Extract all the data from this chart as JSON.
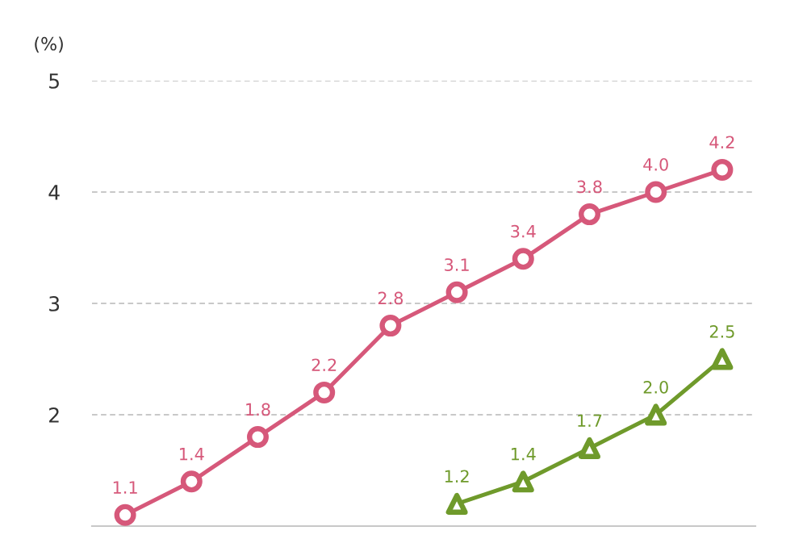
{
  "chart_data": {
    "type": "line",
    "ylabel": "(%)",
    "categories": [
      null,
      null,
      null,
      null,
      null,
      null,
      null,
      null,
      null,
      null
    ],
    "series": [
      {
        "color": "#d6587a",
        "marker": "circle",
        "values": [
          1.1,
          1.4,
          1.8,
          2.2,
          2.8,
          3.1,
          3.4,
          3.8,
          4.0,
          4.2
        ],
        "value_labels": [
          "1.1",
          "1.4",
          "1.8",
          "2.2",
          "2.8",
          "3.1",
          "3.4",
          "3.8",
          "4.0",
          "4.2"
        ]
      },
      {
        "color": "#6f9a2b",
        "marker": "triangle",
        "values": [
          null,
          null,
          null,
          null,
          null,
          1.2,
          1.4,
          1.7,
          2.0,
          2.5
        ],
        "value_labels": [
          null,
          null,
          null,
          null,
          null,
          "1.2",
          "1.4",
          "1.7",
          "2.0",
          "2.5"
        ]
      }
    ],
    "ylim": [
      1.0,
      5.0
    ],
    "yticks": [
      2,
      3,
      4,
      5
    ],
    "grid": "y",
    "tick_labels": "y",
    "line_style": "solid"
  }
}
